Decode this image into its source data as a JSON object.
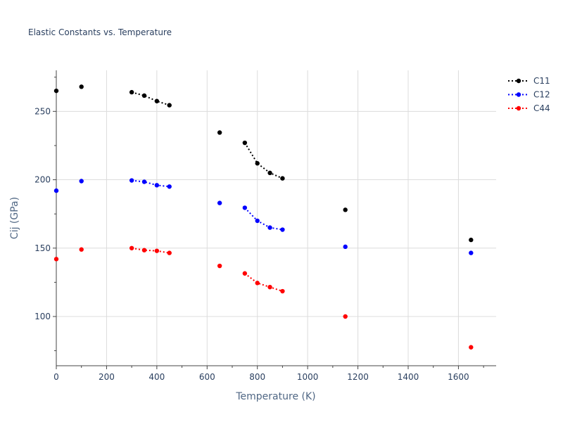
{
  "chart_data": {
    "type": "scatter",
    "title": "Elastic Constants vs. Temperature",
    "xlabel": "Temperature (K)",
    "ylabel": "Cij (GPa)",
    "xlim": [
      0,
      1750
    ],
    "ylim": [
      64,
      280
    ],
    "xticks": [
      0,
      200,
      400,
      600,
      800,
      1000,
      1200,
      1400,
      1600
    ],
    "yticks": [
      100,
      150,
      200,
      250
    ],
    "grid": true,
    "legend_position": "top-right",
    "series": [
      {
        "name": "C11",
        "color": "#000000",
        "points": [
          [
            0,
            265
          ],
          [
            100,
            268
          ],
          [
            300,
            264
          ],
          [
            350,
            261.5
          ],
          [
            400,
            257.5
          ],
          [
            450,
            254.5
          ],
          [
            650,
            234.5
          ],
          [
            750,
            227
          ],
          [
            800,
            212
          ],
          [
            850,
            205
          ],
          [
            900,
            201
          ],
          [
            1150,
            178
          ],
          [
            1650,
            156
          ]
        ],
        "segments": [
          [
            300,
            350,
            400,
            450
          ],
          [
            750,
            800,
            850,
            900
          ]
        ]
      },
      {
        "name": "C12",
        "color": "#0000ff",
        "points": [
          [
            0,
            192
          ],
          [
            100,
            199
          ],
          [
            300,
            199.5
          ],
          [
            350,
            198.5
          ],
          [
            400,
            196
          ],
          [
            450,
            195
          ],
          [
            650,
            183
          ],
          [
            750,
            179.5
          ],
          [
            800,
            170
          ],
          [
            850,
            165
          ],
          [
            900,
            163.5
          ],
          [
            1150,
            151
          ],
          [
            1650,
            146.5
          ]
        ],
        "segments": [
          [
            300,
            350,
            400,
            450
          ],
          [
            750,
            800,
            850,
            900
          ]
        ]
      },
      {
        "name": "C44",
        "color": "#ff0000",
        "points": [
          [
            0,
            142
          ],
          [
            100,
            149
          ],
          [
            300,
            150
          ],
          [
            350,
            148.5
          ],
          [
            400,
            148
          ],
          [
            450,
            146.5
          ],
          [
            650,
            137
          ],
          [
            750,
            131.5
          ],
          [
            800,
            124.5
          ],
          [
            850,
            121.5
          ],
          [
            900,
            118.5
          ],
          [
            1150,
            100
          ],
          [
            1650,
            77.5
          ]
        ],
        "segments": [
          [
            300,
            350,
            400,
            450
          ],
          [
            750,
            800,
            850,
            900
          ]
        ]
      }
    ]
  }
}
